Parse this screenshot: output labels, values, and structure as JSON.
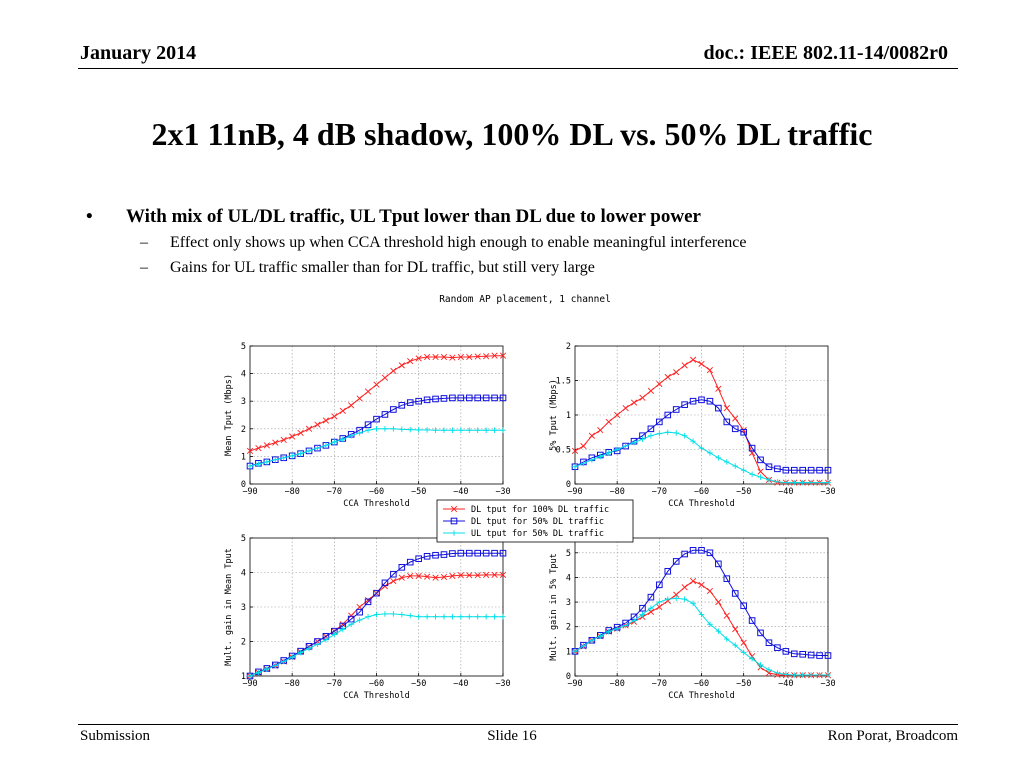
{
  "header": {
    "date": "January 2014",
    "doc": "doc.: IEEE 802.11-14/0082r0"
  },
  "title": "2x1 11nB, 4 dB shadow, 100% DL vs. 50% DL traffic",
  "bullets": {
    "main": "With mix of UL/DL traffic, UL Tput lower than DL due to lower power",
    "sub": [
      "Effect only shows up when CCA threshold high enough to enable meaningful interference",
      "Gains for UL traffic smaller than for DL traffic, but still very large"
    ]
  },
  "figure_title": "Random AP placement, 1 channel",
  "colors": {
    "dl100": "#ff2020",
    "dl50": "#1010dd",
    "ul50": "#00e0e8",
    "grid": "#9a9a9a"
  },
  "legend": [
    {
      "label": "DL tput for 100% DL traffic",
      "series": "dl100",
      "marker": "x"
    },
    {
      "label": "DL tput for 50% DL traffic",
      "series": "dl50",
      "marker": "square"
    },
    {
      "label": "UL tput for 50% DL traffic",
      "series": "ul50",
      "marker": "plus"
    }
  ],
  "chart_data": [
    {
      "type": "line",
      "xlabel": "CCA Threshold",
      "ylabel": "Mean Tput (Mbps)",
      "xlim": [
        -90,
        -30
      ],
      "ylim": [
        0,
        5
      ],
      "xticks": [
        -90,
        -80,
        -70,
        -60,
        -50,
        -40,
        -30
      ],
      "yticks": [
        0,
        1,
        2,
        3,
        4,
        5
      ],
      "ytick_labels": [
        "0",
        "1",
        "2",
        "3",
        "4",
        "5"
      ],
      "grid": true,
      "x": [
        -90,
        -88,
        -86,
        -84,
        -82,
        -80,
        -78,
        -76,
        -74,
        -72,
        -70,
        -68,
        -66,
        -64,
        -62,
        -60,
        -58,
        -56,
        -54,
        -52,
        -50,
        -48,
        -46,
        -44,
        -42,
        -40,
        -38,
        -36,
        -34,
        -32,
        -30
      ],
      "series": [
        {
          "key": "dl100",
          "values": [
            1.2,
            1.3,
            1.4,
            1.5,
            1.6,
            1.72,
            1.85,
            2.0,
            2.15,
            2.3,
            2.45,
            2.65,
            2.85,
            3.1,
            3.35,
            3.6,
            3.85,
            4.1,
            4.3,
            4.45,
            4.55,
            4.6,
            4.6,
            4.6,
            4.58,
            4.6,
            4.6,
            4.62,
            4.63,
            4.65,
            4.65
          ]
        },
        {
          "key": "dl50",
          "values": [
            0.65,
            0.75,
            0.8,
            0.88,
            0.95,
            1.02,
            1.1,
            1.2,
            1.3,
            1.4,
            1.52,
            1.65,
            1.8,
            1.95,
            2.15,
            2.35,
            2.52,
            2.7,
            2.85,
            2.95,
            3.0,
            3.05,
            3.08,
            3.1,
            3.12,
            3.12,
            3.12,
            3.12,
            3.12,
            3.12,
            3.12
          ]
        },
        {
          "key": "ul50",
          "values": [
            0.65,
            0.72,
            0.8,
            0.88,
            0.95,
            1.02,
            1.1,
            1.2,
            1.3,
            1.4,
            1.52,
            1.62,
            1.75,
            1.85,
            1.95,
            2.0,
            2.0,
            2.0,
            1.98,
            1.97,
            1.96,
            1.96,
            1.95,
            1.95,
            1.95,
            1.95,
            1.95,
            1.95,
            1.95,
            1.95,
            1.95
          ]
        }
      ]
    },
    {
      "type": "line",
      "xlabel": "CCA Threshold",
      "ylabel": "5% Tput (Mbps)",
      "xlim": [
        -90,
        -30
      ],
      "ylim": [
        0,
        2
      ],
      "xticks": [
        -90,
        -80,
        -70,
        -60,
        -50,
        -40,
        -30
      ],
      "yticks": [
        0,
        0.5,
        1,
        1.5,
        2
      ],
      "ytick_labels": [
        "0",
        "0.5",
        "1",
        "1.5",
        "2"
      ],
      "grid": true,
      "x": [
        -90,
        -88,
        -86,
        -84,
        -82,
        -80,
        -78,
        -76,
        -74,
        -72,
        -70,
        -68,
        -66,
        -64,
        -62,
        -60,
        -58,
        -56,
        -54,
        -52,
        -50,
        -48,
        -46,
        -44,
        -42,
        -40,
        -38,
        -36,
        -34,
        -32,
        -30
      ],
      "series": [
        {
          "key": "dl100",
          "values": [
            0.48,
            0.55,
            0.7,
            0.78,
            0.9,
            1.0,
            1.1,
            1.18,
            1.25,
            1.35,
            1.45,
            1.55,
            1.62,
            1.72,
            1.8,
            1.74,
            1.65,
            1.38,
            1.1,
            0.95,
            0.78,
            0.45,
            0.18,
            0.06,
            0.02,
            0.02,
            0.02,
            0.02,
            0.02,
            0.02,
            0.02
          ]
        },
        {
          "key": "dl50",
          "values": [
            0.25,
            0.32,
            0.38,
            0.42,
            0.46,
            0.48,
            0.55,
            0.62,
            0.7,
            0.8,
            0.9,
            1.0,
            1.08,
            1.15,
            1.2,
            1.22,
            1.2,
            1.1,
            0.9,
            0.8,
            0.75,
            0.52,
            0.35,
            0.25,
            0.22,
            0.2,
            0.2,
            0.2,
            0.2,
            0.2,
            0.2
          ]
        },
        {
          "key": "ul50",
          "values": [
            0.25,
            0.3,
            0.35,
            0.4,
            0.45,
            0.5,
            0.55,
            0.6,
            0.65,
            0.7,
            0.73,
            0.75,
            0.74,
            0.7,
            0.62,
            0.52,
            0.45,
            0.38,
            0.32,
            0.26,
            0.2,
            0.14,
            0.1,
            0.06,
            0.03,
            0.02,
            0.02,
            0.02,
            0.02,
            0.02,
            0.02
          ]
        }
      ]
    },
    {
      "type": "line",
      "xlabel": "CCA Threshold",
      "ylabel": "Mult. gain in Mean Tput",
      "xlim": [
        -90,
        -30
      ],
      "ylim": [
        1,
        5
      ],
      "xticks": [
        -90,
        -80,
        -70,
        -60,
        -50,
        -40,
        -30
      ],
      "yticks": [
        1,
        2,
        3,
        4,
        5
      ],
      "ytick_labels": [
        "1",
        "2",
        "3",
        "4",
        "5"
      ],
      "grid": true,
      "x": [
        -90,
        -88,
        -86,
        -84,
        -82,
        -80,
        -78,
        -76,
        -74,
        -72,
        -70,
        -68,
        -66,
        -64,
        -62,
        -60,
        -58,
        -56,
        -54,
        -52,
        -50,
        -48,
        -46,
        -44,
        -42,
        -40,
        -38,
        -36,
        -34,
        -32,
        -30
      ],
      "series": [
        {
          "key": "dl100",
          "values": [
            1.0,
            1.1,
            1.2,
            1.3,
            1.42,
            1.55,
            1.7,
            1.85,
            2.0,
            2.15,
            2.3,
            2.5,
            2.75,
            3.0,
            3.2,
            3.4,
            3.6,
            3.75,
            3.85,
            3.9,
            3.9,
            3.88,
            3.85,
            3.87,
            3.9,
            3.92,
            3.92,
            3.92,
            3.93,
            3.93,
            3.93
          ]
        },
        {
          "key": "dl50",
          "values": [
            1.0,
            1.12,
            1.22,
            1.32,
            1.45,
            1.58,
            1.72,
            1.86,
            2.0,
            2.15,
            2.3,
            2.45,
            2.65,
            2.85,
            3.15,
            3.4,
            3.7,
            3.95,
            4.15,
            4.3,
            4.4,
            4.47,
            4.5,
            4.52,
            4.55,
            4.56,
            4.56,
            4.56,
            4.56,
            4.56,
            4.56
          ]
        },
        {
          "key": "ul50",
          "values": [
            1.0,
            1.1,
            1.2,
            1.3,
            1.42,
            1.55,
            1.68,
            1.8,
            1.92,
            2.05,
            2.2,
            2.35,
            2.5,
            2.62,
            2.72,
            2.78,
            2.8,
            2.8,
            2.78,
            2.75,
            2.72,
            2.72,
            2.72,
            2.72,
            2.72,
            2.72,
            2.72,
            2.72,
            2.72,
            2.72,
            2.72
          ]
        }
      ]
    },
    {
      "type": "line",
      "xlabel": "CCA Threshold",
      "ylabel": "Mult. gain in 5% Tput",
      "xlim": [
        -90,
        -30
      ],
      "ylim": [
        0,
        5.6
      ],
      "xticks": [
        -90,
        -80,
        -70,
        -60,
        -50,
        -40,
        -30
      ],
      "yticks": [
        0,
        1,
        2,
        3,
        4,
        5
      ],
      "ytick_labels": [
        "0",
        "1",
        "2",
        "3",
        "4",
        "5"
      ],
      "grid": true,
      "x": [
        -90,
        -88,
        -86,
        -84,
        -82,
        -80,
        -78,
        -76,
        -74,
        -72,
        -70,
        -68,
        -66,
        -64,
        -62,
        -60,
        -58,
        -56,
        -54,
        -52,
        -50,
        -48,
        -46,
        -44,
        -42,
        -40,
        -38,
        -36,
        -34,
        -32,
        -30
      ],
      "series": [
        {
          "key": "dl100",
          "values": [
            1.0,
            1.2,
            1.45,
            1.62,
            1.8,
            1.92,
            2.05,
            2.2,
            2.4,
            2.6,
            2.8,
            3.05,
            3.3,
            3.6,
            3.85,
            3.7,
            3.45,
            3.0,
            2.45,
            1.9,
            1.35,
            0.8,
            0.35,
            0.12,
            0.05,
            0.03,
            0.03,
            0.03,
            0.03,
            0.03,
            0.03
          ]
        },
        {
          "key": "dl50",
          "values": [
            1.0,
            1.25,
            1.45,
            1.65,
            1.85,
            1.98,
            2.15,
            2.4,
            2.75,
            3.2,
            3.7,
            4.25,
            4.65,
            4.95,
            5.1,
            5.1,
            5.0,
            4.55,
            3.95,
            3.35,
            2.85,
            2.25,
            1.75,
            1.35,
            1.15,
            1.0,
            0.9,
            0.88,
            0.85,
            0.83,
            0.83
          ]
        },
        {
          "key": "ul50",
          "values": [
            1.0,
            1.22,
            1.45,
            1.62,
            1.8,
            1.92,
            2.05,
            2.25,
            2.5,
            2.75,
            3.0,
            3.12,
            3.15,
            3.12,
            2.95,
            2.5,
            2.1,
            1.82,
            1.5,
            1.25,
            0.95,
            0.7,
            0.45,
            0.25,
            0.12,
            0.06,
            0.04,
            0.04,
            0.04,
            0.04,
            0.04
          ]
        }
      ]
    }
  ],
  "footer": {
    "left": "Submission",
    "center": "Slide 16",
    "right": "Ron Porat, Broadcom"
  }
}
